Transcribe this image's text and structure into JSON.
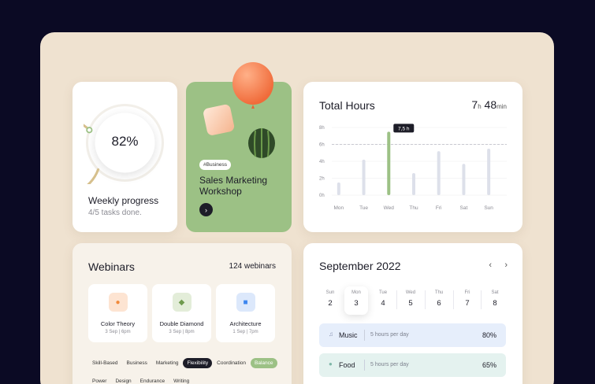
{
  "progress": {
    "percent_label": "82%",
    "value": 0.82,
    "title": "Weekly progress",
    "subtitle": "4/5 tasks done.",
    "ring_color": "#d6c08d"
  },
  "workshop": {
    "tag": "#Business",
    "title": "Sales Marketing Workshop",
    "arrow": "›",
    "bg_color": "#9cc185"
  },
  "hours": {
    "title": "Total Hours",
    "total_hours": "7",
    "hours_unit": "h",
    "total_minutes": "48",
    "minutes_unit": "min",
    "chart_data": {
      "type": "bar",
      "categories": [
        "Mon",
        "Tue",
        "Wed",
        "Thu",
        "Fri",
        "Sat",
        "Sun"
      ],
      "values": [
        1.5,
        4.2,
        7.5,
        2.6,
        5.2,
        3.7,
        5.5
      ],
      "highlight_index": 2,
      "highlight_label": "7,5 h",
      "y_ticks": [
        "0h",
        "2h",
        "4h",
        "6h",
        "8h"
      ],
      "ylim": [
        0,
        8
      ],
      "reference_line": 6,
      "bar_color": "#dde0ea",
      "highlight_color": "#9cc185"
    }
  },
  "webinars": {
    "title": "Webinars",
    "count": "124 webinars",
    "courses": [
      {
        "name": "Color Theory",
        "time": "3 Sep  |  6pm",
        "icon": "orange-sphere-icon",
        "icon_bg": "#fde4d2",
        "icon_color": "#f28a3c"
      },
      {
        "name": "Double Diamond",
        "time": "3 Sep  |  8pm",
        "icon": "green-diamond-icon",
        "icon_bg": "#e3edd9",
        "icon_color": "#6f9a4e"
      },
      {
        "name": "Architecture",
        "time": "1 Sep  |  7pm",
        "icon": "blue-cube-icon",
        "icon_bg": "#dce8fb",
        "icon_color": "#3d86ef"
      }
    ],
    "tags": [
      "Skill-Based",
      "Business",
      "Marketing",
      "Flexibility",
      "Coordination",
      "Balance",
      "Power",
      "Design",
      "Endurance",
      "Writing"
    ],
    "active_tag": "Flexibility",
    "green_tag": "Balance"
  },
  "calendar": {
    "title": "September 2022",
    "prev": "‹",
    "next": "›",
    "days": [
      {
        "name": "Sun",
        "num": "2"
      },
      {
        "name": "Mon",
        "num": "3"
      },
      {
        "name": "Tue",
        "num": "4"
      },
      {
        "name": "Wed",
        "num": "5"
      },
      {
        "name": "Thu",
        "num": "6"
      },
      {
        "name": "Fri",
        "num": "7"
      },
      {
        "name": "Sat",
        "num": "8"
      }
    ],
    "selected_day": "3",
    "activities": [
      {
        "name": "Music",
        "desc": "5 hours per day",
        "pct": "80%",
        "icon": "music-note-icon",
        "bg": "#e6eefb"
      },
      {
        "name": "Food",
        "desc": "5 hours per day",
        "pct": "65%",
        "icon": "food-icon",
        "bg": "#e4f2ef"
      }
    ]
  }
}
